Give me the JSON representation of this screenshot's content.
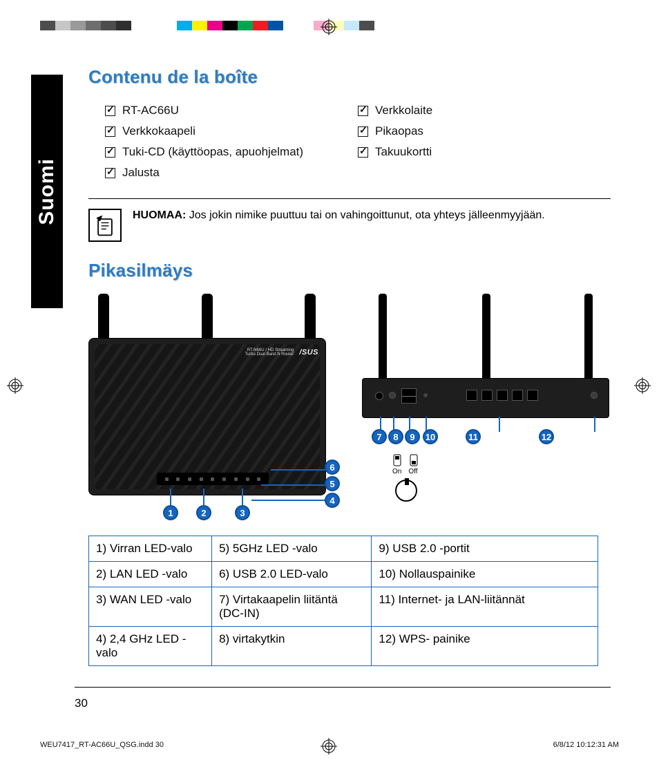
{
  "print": {
    "color_bar": [
      "#4d4d4d",
      "#c6c6c6",
      "#9a9a9a",
      "#6e6e6e",
      "#4d4d4d",
      "#2f2f2f",
      "#ffffff",
      "#ffffff",
      "#ffffff",
      "#00adee",
      "#fff100",
      "#ec008b",
      "#000000",
      "#00a550",
      "#ee1d23",
      "#0054a5",
      "#ffffff",
      "#ffffff",
      "#f6adcd",
      "#fdfbbd",
      "#c5e8fb",
      "#4d4d4d"
    ]
  },
  "side_tab": "Suomi",
  "sections": {
    "box_contents": "Contenu de la boîte",
    "quick_look": "Pikasilmäys"
  },
  "checklist": {
    "left": [
      "RT-AC66U",
      "Verkkokaapeli",
      "Tuki-CD (käyttöopas, apuohjelmat)",
      "Jalusta"
    ],
    "right": [
      "Verkkolaite",
      "Pikaopas",
      "Takuukortti"
    ]
  },
  "note": {
    "label": "HUOMAA:",
    "text": "Jos jokin nimike puuttuu tai on vahingoittunut, ota yhteys jälleenmyyjään."
  },
  "diagram": {
    "brand_small": "RT-N66U / HD Streaming\nTurbo Dual Band N Router",
    "brand_logo": "/SUS",
    "front_labels": [
      "1",
      "2",
      "3",
      "4",
      "5",
      "6"
    ],
    "back_labels": [
      "7",
      "8",
      "9",
      "10",
      "11",
      "12"
    ],
    "switch": {
      "on": "On",
      "off": "Off"
    },
    "accent_color": "#1565c0"
  },
  "parts_table": {
    "rows": [
      [
        "1)   Virran LED-valo",
        "5)   5GHz LED -valo",
        "9)    USB 2.0 -portit"
      ],
      [
        "2)   LAN LED -valo",
        "6)   USB 2.0 LED-valo",
        "10)  Nollauspainike"
      ],
      [
        "3)   WAN LED -valo",
        "7)   Virtakaapelin liitäntä (DC-IN)",
        "11)   Internet- ja LAN-liitännät"
      ],
      [
        "4)   2,4 GHz LED -valo",
        "8)   virtakytkin",
        "12)   WPS- painike"
      ]
    ]
  },
  "page_number": "30",
  "footer": {
    "left": "WEU7417_RT-AC66U_QSG.indd   30",
    "right": "6/8/12   10:12:31 AM"
  }
}
